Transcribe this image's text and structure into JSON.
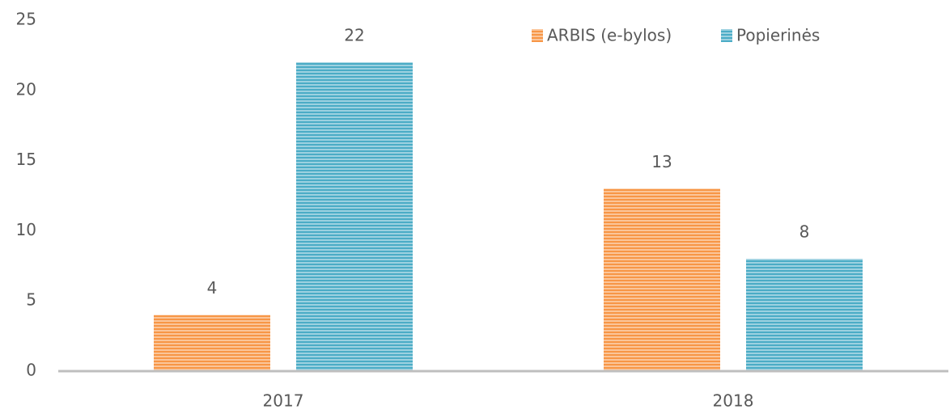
{
  "chart_data": {
    "type": "bar",
    "categories": [
      "2017",
      "2018"
    ],
    "series": [
      {
        "name": "ARBIS (e-bylos)",
        "color": "#f79646",
        "values": [
          4,
          13
        ]
      },
      {
        "name": "Popierinės",
        "color": "#4bacc6",
        "values": [
          22,
          8
        ]
      }
    ],
    "ylim": [
      0,
      25
    ],
    "yticks": [
      0,
      5,
      10,
      15,
      20,
      25
    ],
    "grid": false,
    "legend": "top-right"
  }
}
